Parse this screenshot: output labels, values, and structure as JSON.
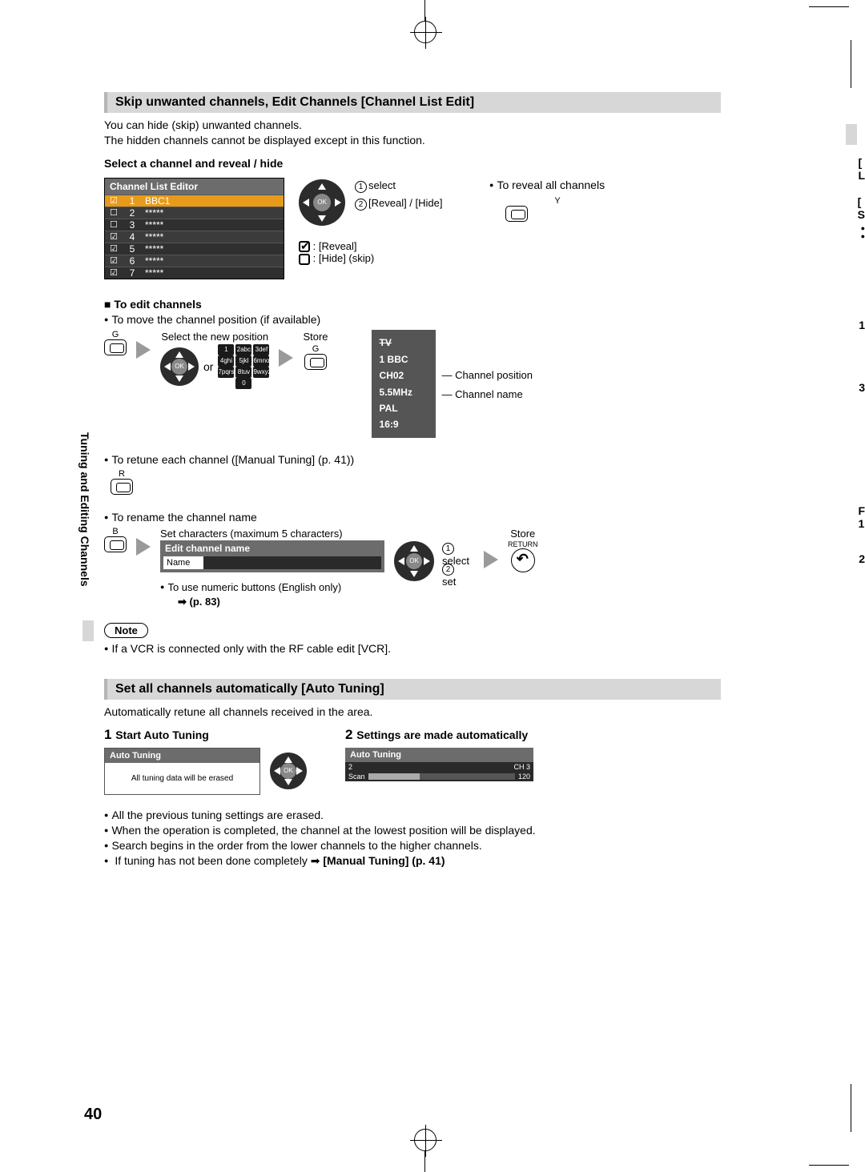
{
  "page_number": "40",
  "sidebar_title": "Tuning and Editing Channels",
  "section1": {
    "title": "Skip unwanted channels, Edit Channels [Channel List Edit]",
    "intro1": "You can hide (skip) unwanted channels.",
    "intro2": "The hidden channels cannot be displayed except in this function.",
    "select_heading": "Select a channel and reveal / hide",
    "editor_title": "Channel List Editor",
    "rows": [
      {
        "chk": "☑",
        "n": "1",
        "name": "BBC1"
      },
      {
        "chk": "☐",
        "n": "2",
        "name": "*****"
      },
      {
        "chk": "☐",
        "n": "3",
        "name": "*****"
      },
      {
        "chk": "☑",
        "n": "4",
        "name": "*****"
      },
      {
        "chk": "☑",
        "n": "5",
        "name": "*****"
      },
      {
        "chk": "☑",
        "n": "6",
        "name": "*****"
      },
      {
        "chk": "☑",
        "n": "7",
        "name": "*****"
      }
    ],
    "sel_label": "select",
    "reveal_hide": "[Reveal] / [Hide]",
    "reveal": ": [Reveal]",
    "hide": ": [Hide] (skip)",
    "reveal_all": "To reveal all channels",
    "y_label": "Y",
    "edit_heading": "■ To edit channels",
    "move_text": "To move the channel position (if available)",
    "select_new": "Select the new position",
    "store": "Store",
    "or": "or",
    "g_label": "G",
    "info": {
      "tv": "TV",
      "line": "1   BBC",
      "ch": "CH02",
      "mhz": "5.5MHz",
      "pal": "PAL",
      "aspect": "16:9"
    },
    "chpos": "Channel position",
    "chname": "Channel name",
    "retune": "To retune each channel ([Manual Tuning] (p. 41))",
    "r_label": "R",
    "rename": "To rename the channel name",
    "setchars": "Set characters (maximum 5 characters)",
    "b_label": "B",
    "edit_name_title": "Edit channel name",
    "name_label": "Name",
    "set": "set",
    "numeric": "To use numeric buttons (English only)",
    "p83": "(p. 83)",
    "note": "Note",
    "vcr": "If a VCR is connected only with the RF cable edit [VCR].",
    "return_label": "RETURN"
  },
  "section2": {
    "title": "Set all channels automatically [Auto Tuning]",
    "intro": "Automatically retune all channels received in the area.",
    "step1": "Start Auto Tuning",
    "step2": "Settings are made automatically",
    "auto_title": "Auto Tuning",
    "auto_body": "All tuning data will be erased",
    "res_ch": "CH 3",
    "res_num": "2",
    "scan": "Scan",
    "scan_end": "120",
    "b1": "All the previous tuning settings are erased.",
    "b2": "When the operation is completed, the channel at the lowest position will be displayed.",
    "b3": "Search begins in the order from the lower channels to the higher channels.",
    "b4a": "If tuning has not been done completely ",
    "b4b": "[Manual Tuning] (p. 41)"
  },
  "numpad": [
    [
      "1",
      "2abc",
      "3def"
    ],
    [
      "4ghi",
      "5jkl",
      "6mno"
    ],
    [
      "7pqrs",
      "8tuv",
      "9wxyz"
    ],
    [
      "",
      "0",
      ""
    ]
  ],
  "colors": {
    "section_bg": "#d7d7d7",
    "editor_header": "#6c6c6c",
    "row_dark": "#2f2f2f",
    "row_sel": "#e89a1a",
    "dpad": "#2c2c2c",
    "info_bg": "#555555"
  }
}
